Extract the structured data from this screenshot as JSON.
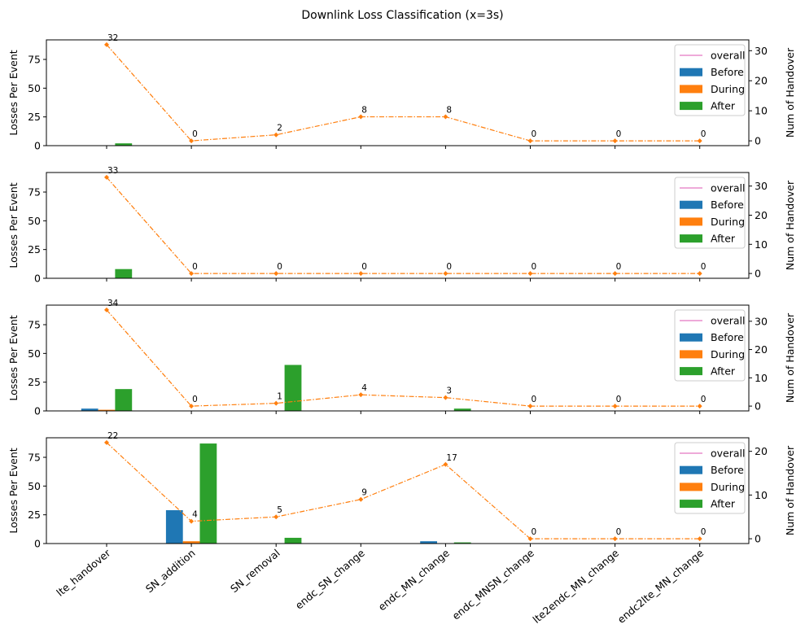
{
  "chart_data": {
    "title": "Downlink Loss Classification (x=3s)",
    "type": "bar",
    "categories": [
      "lte_handover",
      "SN_addition",
      "SN_removal",
      "endc_SN_change",
      "endc_MN_change",
      "endc_MNSN_change",
      "lte2endc_MN_change",
      "endc2lte_MN_change"
    ],
    "colors": {
      "Before": "#1f77b4",
      "During": "#ff7f0e",
      "After": "#2ca02c",
      "overall": "#e377c2",
      "handover_line": "#ff7f0e"
    },
    "legend": {
      "placement": "top-right",
      "entries": [
        "overall",
        "Before",
        "During",
        "After"
      ]
    },
    "ylabel_left": "Losses Per Event",
    "ylabel_right": "Num of Handover",
    "subplots": [
      {
        "ylim_left": [
          0,
          92
        ],
        "yticks_left": [
          0,
          25,
          50,
          75
        ],
        "ylim_right": [
          -1.6,
          33.6
        ],
        "yticks_right": [
          0,
          10,
          20,
          30
        ],
        "series": [
          {
            "name": "Before",
            "values": [
              0,
              0,
              0,
              0,
              0,
              0,
              0,
              0
            ]
          },
          {
            "name": "During",
            "values": [
              0,
              0,
              0,
              0,
              0,
              0,
              0,
              0
            ]
          },
          {
            "name": "After",
            "values": [
              2,
              0,
              0,
              0,
              0,
              0,
              0,
              0
            ]
          }
        ],
        "handovers": [
          32,
          0,
          2,
          8,
          8,
          0,
          0,
          0
        ]
      },
      {
        "ylim_left": [
          0,
          92
        ],
        "yticks_left": [
          0,
          25,
          50,
          75
        ],
        "ylim_right": [
          -1.65,
          34.65
        ],
        "yticks_right": [
          0,
          10,
          20,
          30
        ],
        "series": [
          {
            "name": "Before",
            "values": [
              0,
              0,
              0,
              0,
              0,
              0,
              0,
              0
            ]
          },
          {
            "name": "During",
            "values": [
              0,
              0,
              0,
              0,
              0,
              0,
              0,
              0
            ]
          },
          {
            "name": "After",
            "values": [
              8,
              0,
              0,
              0,
              0,
              0,
              0,
              0
            ]
          }
        ],
        "handovers": [
          33,
          0,
          0,
          0,
          0,
          0,
          0,
          0
        ]
      },
      {
        "ylim_left": [
          0,
          92
        ],
        "yticks_left": [
          0,
          25,
          50,
          75
        ],
        "ylim_right": [
          -1.7,
          35.7
        ],
        "yticks_right": [
          0,
          10,
          20,
          30
        ],
        "series": [
          {
            "name": "Before",
            "values": [
              2,
              0,
              0,
              0,
              0,
              0,
              0,
              0
            ]
          },
          {
            "name": "During",
            "values": [
              1,
              0,
              0,
              0,
              0,
              0,
              0,
              0
            ]
          },
          {
            "name": "After",
            "values": [
              19,
              0,
              40,
              0,
              2,
              0,
              0,
              0
            ]
          }
        ],
        "handovers": [
          34,
          0,
          1,
          4,
          3,
          0,
          0,
          0
        ]
      },
      {
        "ylim_left": [
          0,
          92
        ],
        "yticks_left": [
          0,
          25,
          50,
          75
        ],
        "ylim_right": [
          -1.1,
          23.1
        ],
        "yticks_right": [
          0,
          10,
          20
        ],
        "series": [
          {
            "name": "Before",
            "values": [
              0,
              29,
              0,
              0,
              2,
              0,
              0,
              0
            ]
          },
          {
            "name": "During",
            "values": [
              0,
              2,
              0,
              0,
              0,
              0,
              0,
              0
            ]
          },
          {
            "name": "After",
            "values": [
              0,
              87,
              5,
              0,
              1,
              0,
              0,
              0
            ]
          }
        ],
        "handovers": [
          22,
          4,
          5,
          9,
          17,
          0,
          0,
          0
        ]
      }
    ]
  }
}
